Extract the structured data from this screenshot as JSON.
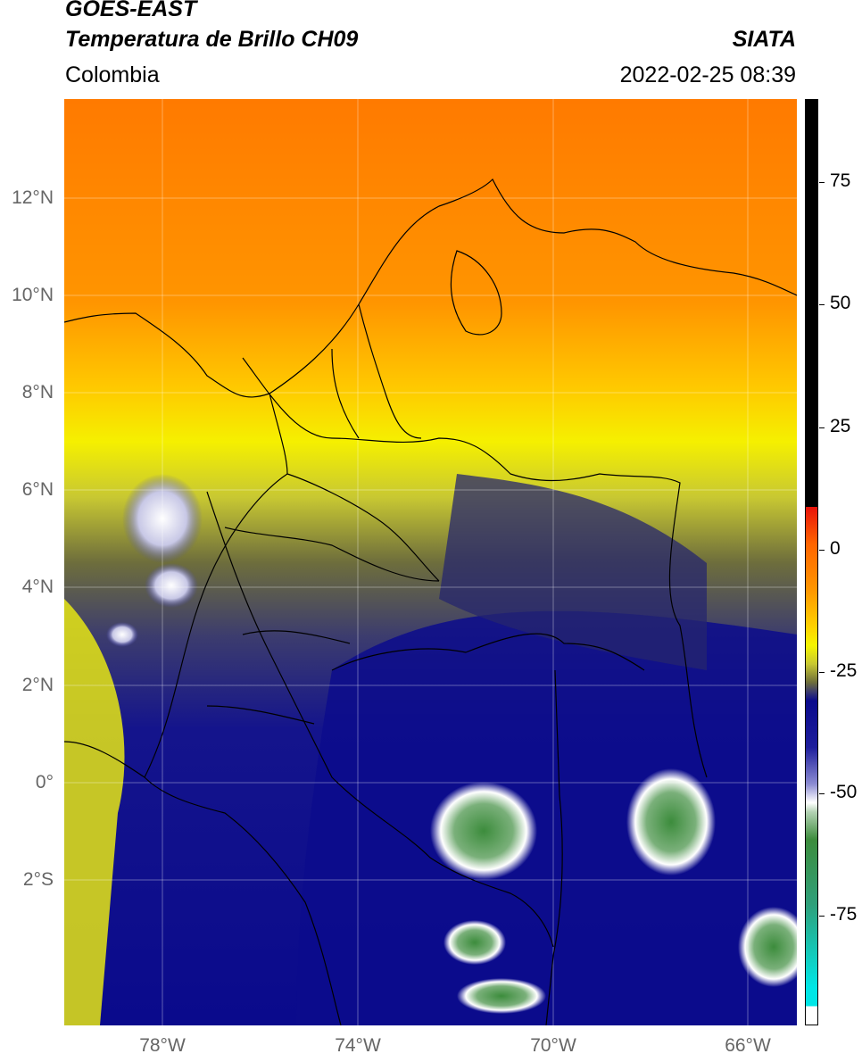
{
  "header": {
    "satellite": "GOES-EAST",
    "product": "Temperatura de Brillo CH09",
    "organization": "SIATA",
    "region": "Colombia",
    "datetime": "2022-02-25 08:39"
  },
  "map": {
    "lat_labels": [
      "12°N",
      "10°N",
      "8°N",
      "6°N",
      "4°N",
      "2°N",
      "0°",
      "2°S"
    ],
    "lon_labels": [
      "78°W",
      "74°W",
      "70°W",
      "66°W"
    ]
  },
  "colorbar": {
    "tick_labels": [
      "75",
      "50",
      "25",
      "0",
      "-25",
      "-50",
      "-75"
    ],
    "colors": {
      "black": "#000000",
      "red": "#e8120a",
      "orange": "#ff8c00",
      "yellow": "#f5f500",
      "olive": "#6e6e3a",
      "navy": "#0a0a8c",
      "white": "#ffffff",
      "green": "#3c8c3c",
      "cyan": "#00e6e6"
    }
  }
}
